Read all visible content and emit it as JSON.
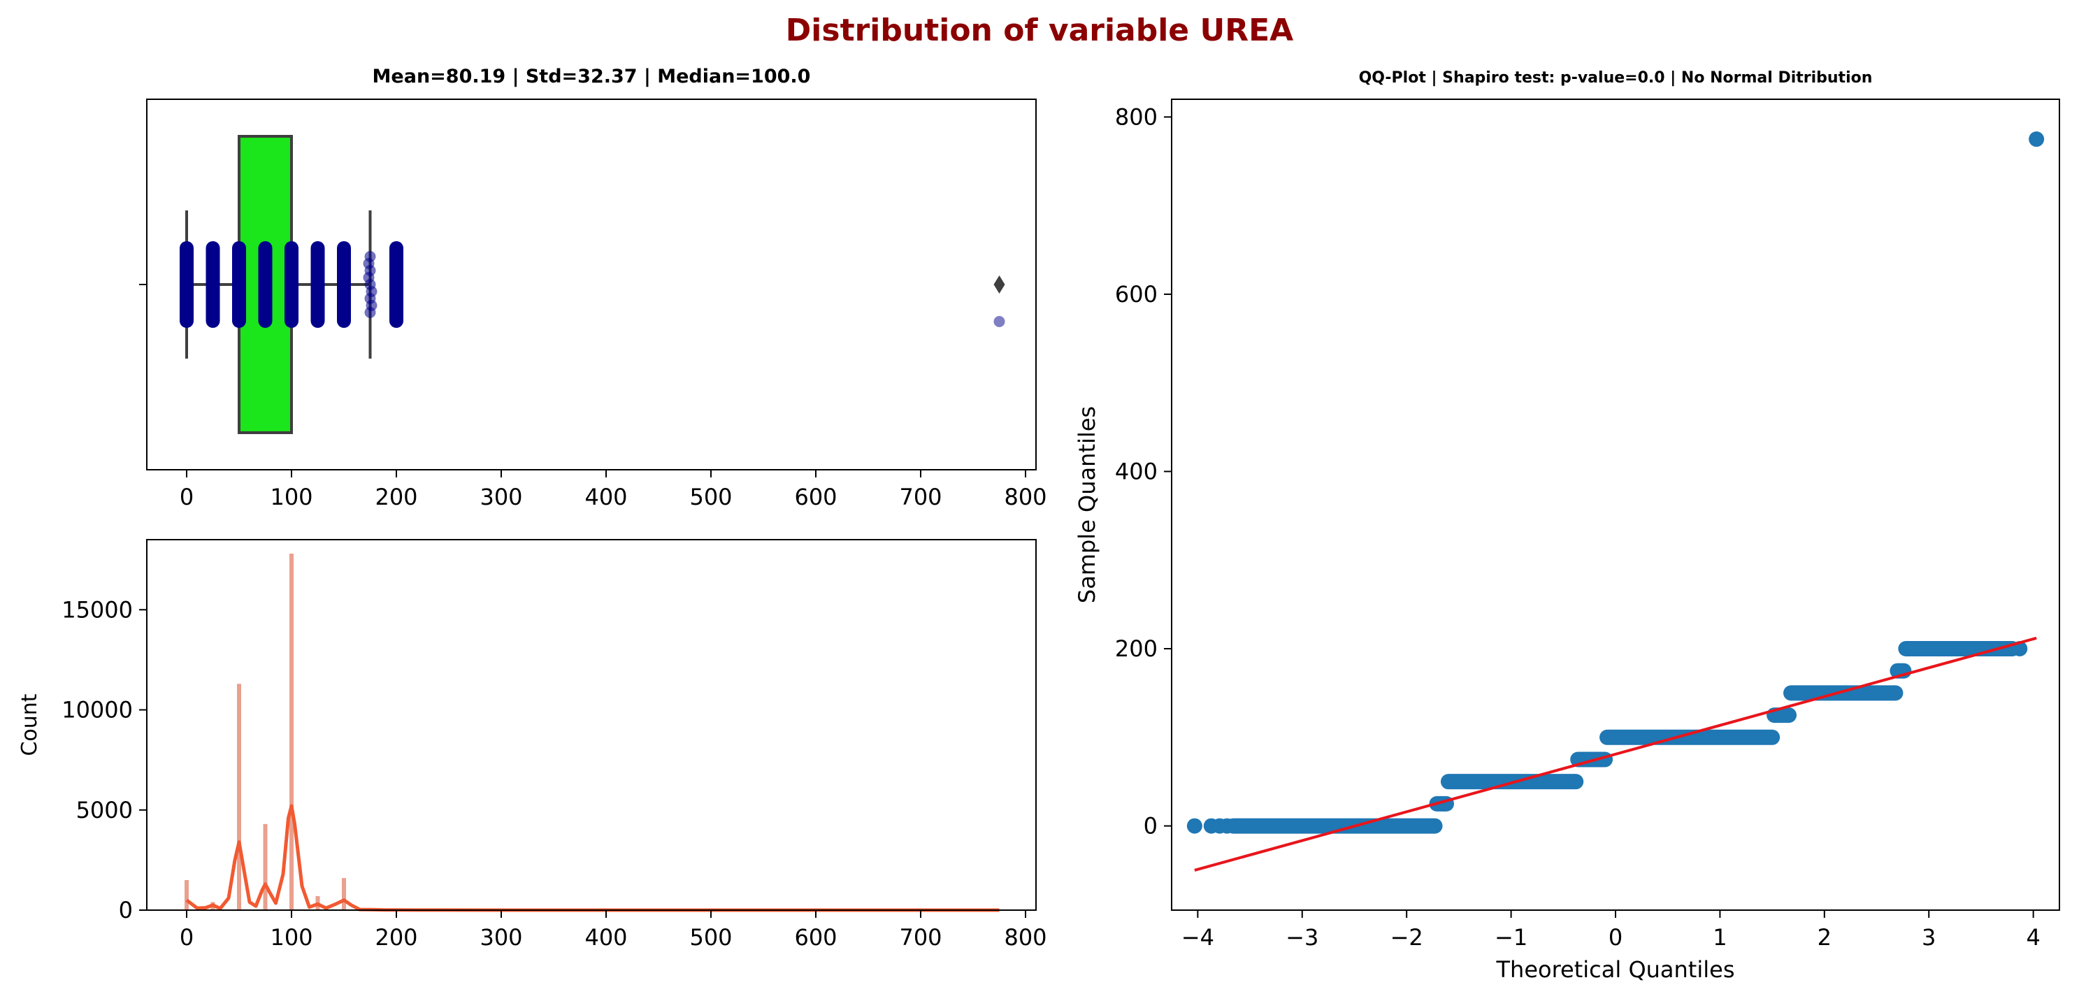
{
  "figure": {
    "title": "Distribution of variable UREA",
    "title_color": "#8b0000"
  },
  "chart_data": [
    {
      "type": "box",
      "title": "Mean=80.19 | Std=32.37 | Median=100.0",
      "xlabel": "",
      "ylabel": "",
      "xlim": [
        -38,
        810
      ],
      "xticks": [
        0,
        100,
        200,
        300,
        400,
        500,
        600,
        700,
        800
      ],
      "box": {
        "whisker_low": 0,
        "q1": 50,
        "median": 100,
        "q3": 100,
        "whisker_high": 175
      },
      "outliers": [
        775
      ],
      "strip_points": [
        0,
        25,
        50,
        75,
        100,
        125,
        150,
        175,
        200,
        775
      ],
      "box_color": "#1be51b",
      "strip_color": "#00008b",
      "grid": false
    },
    {
      "type": "histogram",
      "title": "",
      "xlabel": "",
      "ylabel": "Count",
      "xlim": [
        -38,
        810
      ],
      "ylim": [
        0,
        18500
      ],
      "xticks": [
        0,
        100,
        200,
        300,
        400,
        500,
        600,
        700,
        800
      ],
      "yticks": [
        0,
        5000,
        10000,
        15000
      ],
      "bars": [
        {
          "x": 0,
          "count": 1500
        },
        {
          "x": 25,
          "count": 400
        },
        {
          "x": 50,
          "count": 11300
        },
        {
          "x": 75,
          "count": 4300
        },
        {
          "x": 100,
          "count": 17800
        },
        {
          "x": 125,
          "count": 700
        },
        {
          "x": 150,
          "count": 1600
        },
        {
          "x": 175,
          "count": 50
        },
        {
          "x": 200,
          "count": 30
        },
        {
          "x": 775,
          "count": 1
        }
      ],
      "kde": [
        {
          "x": 0,
          "y": 500
        },
        {
          "x": 10,
          "y": 100
        },
        {
          "x": 18,
          "y": 120
        },
        {
          "x": 25,
          "y": 250
        },
        {
          "x": 32,
          "y": 80
        },
        {
          "x": 40,
          "y": 600
        },
        {
          "x": 46,
          "y": 2500
        },
        {
          "x": 50,
          "y": 3400
        },
        {
          "x": 54,
          "y": 2200
        },
        {
          "x": 60,
          "y": 400
        },
        {
          "x": 66,
          "y": 200
        },
        {
          "x": 72,
          "y": 1000
        },
        {
          "x": 75,
          "y": 1300
        },
        {
          "x": 79,
          "y": 900
        },
        {
          "x": 85,
          "y": 350
        },
        {
          "x": 92,
          "y": 1800
        },
        {
          "x": 97,
          "y": 4600
        },
        {
          "x": 100,
          "y": 5200
        },
        {
          "x": 103,
          "y": 4300
        },
        {
          "x": 110,
          "y": 1200
        },
        {
          "x": 117,
          "y": 150
        },
        {
          "x": 125,
          "y": 300
        },
        {
          "x": 133,
          "y": 100
        },
        {
          "x": 142,
          "y": 300
        },
        {
          "x": 150,
          "y": 500
        },
        {
          "x": 157,
          "y": 250
        },
        {
          "x": 165,
          "y": 30
        },
        {
          "x": 175,
          "y": 25
        },
        {
          "x": 190,
          "y": 10
        },
        {
          "x": 200,
          "y": 12
        },
        {
          "x": 220,
          "y": 3
        },
        {
          "x": 300,
          "y": 0
        },
        {
          "x": 500,
          "y": 0
        },
        {
          "x": 775,
          "y": 0
        }
      ],
      "bar_color": "#e9a08e",
      "kde_color": "#f15a32",
      "grid": false
    },
    {
      "type": "scatter",
      "title": "QQ-Plot | Shapiro test: p-value=0.0 | No Normal Ditribution",
      "xlabel": "Theoretical Quantiles",
      "ylabel": "Sample Quantiles",
      "xlim": [
        -4.25,
        4.25
      ],
      "ylim": [
        -95,
        820
      ],
      "xticks": [
        -4,
        -3,
        -2,
        -1,
        0,
        1,
        2,
        3,
        4
      ],
      "xtick_labels": [
        "−4",
        "−3",
        "−2",
        "−1",
        "0",
        "1",
        "2",
        "3",
        "4"
      ],
      "yticks": [
        0,
        200,
        400,
        600,
        800
      ],
      "steps": [
        {
          "y": 0,
          "x_start": -3.66,
          "x_end": -1.73
        },
        {
          "y": 25,
          "x_start": -1.71,
          "x_end": -1.62
        },
        {
          "y": 50,
          "x_start": -1.6,
          "x_end": -0.38
        },
        {
          "y": 75,
          "x_start": -0.36,
          "x_end": -0.1
        },
        {
          "y": 100,
          "x_start": -0.08,
          "x_end": 1.5
        },
        {
          "y": 125,
          "x_start": 1.52,
          "x_end": 1.66
        },
        {
          "y": 150,
          "x_start": 1.68,
          "x_end": 2.68
        },
        {
          "y": 175,
          "x_start": 2.7,
          "x_end": 2.76
        },
        {
          "y": 200,
          "x_start": 2.78,
          "x_end": 3.8
        }
      ],
      "points": [
        {
          "x": -4.03,
          "y": 0
        },
        {
          "x": -3.87,
          "y": 0
        },
        {
          "x": -3.79,
          "y": 0
        },
        {
          "x": -3.72,
          "y": 0
        },
        {
          "x": 3.87,
          "y": 200
        },
        {
          "x": 4.03,
          "y": 775
        }
      ],
      "fit_line": [
        {
          "x": -4.03,
          "y": -50
        },
        {
          "x": 4.03,
          "y": 212
        }
      ],
      "point_color": "#1f77b4",
      "line_color": "#e8151b",
      "grid": false
    }
  ]
}
